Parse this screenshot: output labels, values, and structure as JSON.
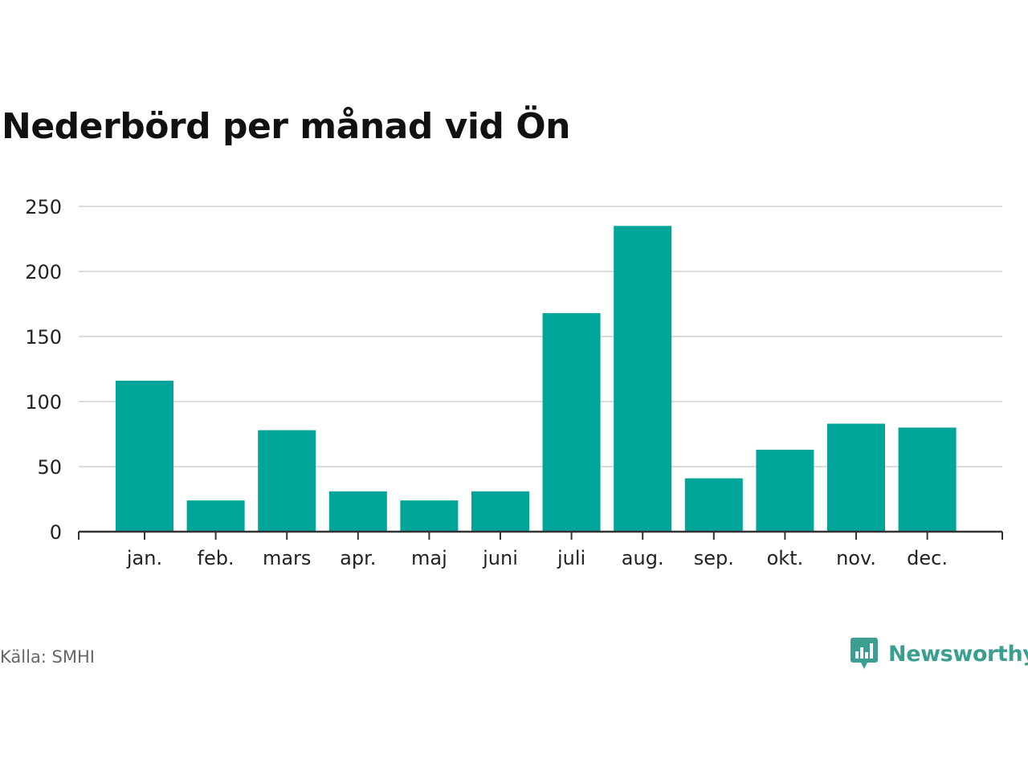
{
  "title": "Nederbörd per månad vid Ön",
  "source": "Källa: SMHI",
  "brand": {
    "name": "Newsworthy",
    "logo_icon": "newsworthy-chat-bars-icon",
    "color": "#3a9e90"
  },
  "colors": {
    "bar": "#00a59a",
    "grid": "#dddddd",
    "axis": "#333333"
  },
  "chart_data": {
    "type": "bar",
    "categories": [
      "jan.",
      "feb.",
      "mars",
      "apr.",
      "maj",
      "juni",
      "juli",
      "aug.",
      "sep.",
      "okt.",
      "nov.",
      "dec."
    ],
    "values": [
      116,
      24,
      78,
      31,
      24,
      31,
      168,
      235,
      41,
      63,
      83,
      80
    ],
    "ylim": [
      0,
      250
    ],
    "yticks": [
      0,
      50,
      100,
      150,
      200,
      250
    ],
    "grid": true,
    "legend": "none"
  }
}
